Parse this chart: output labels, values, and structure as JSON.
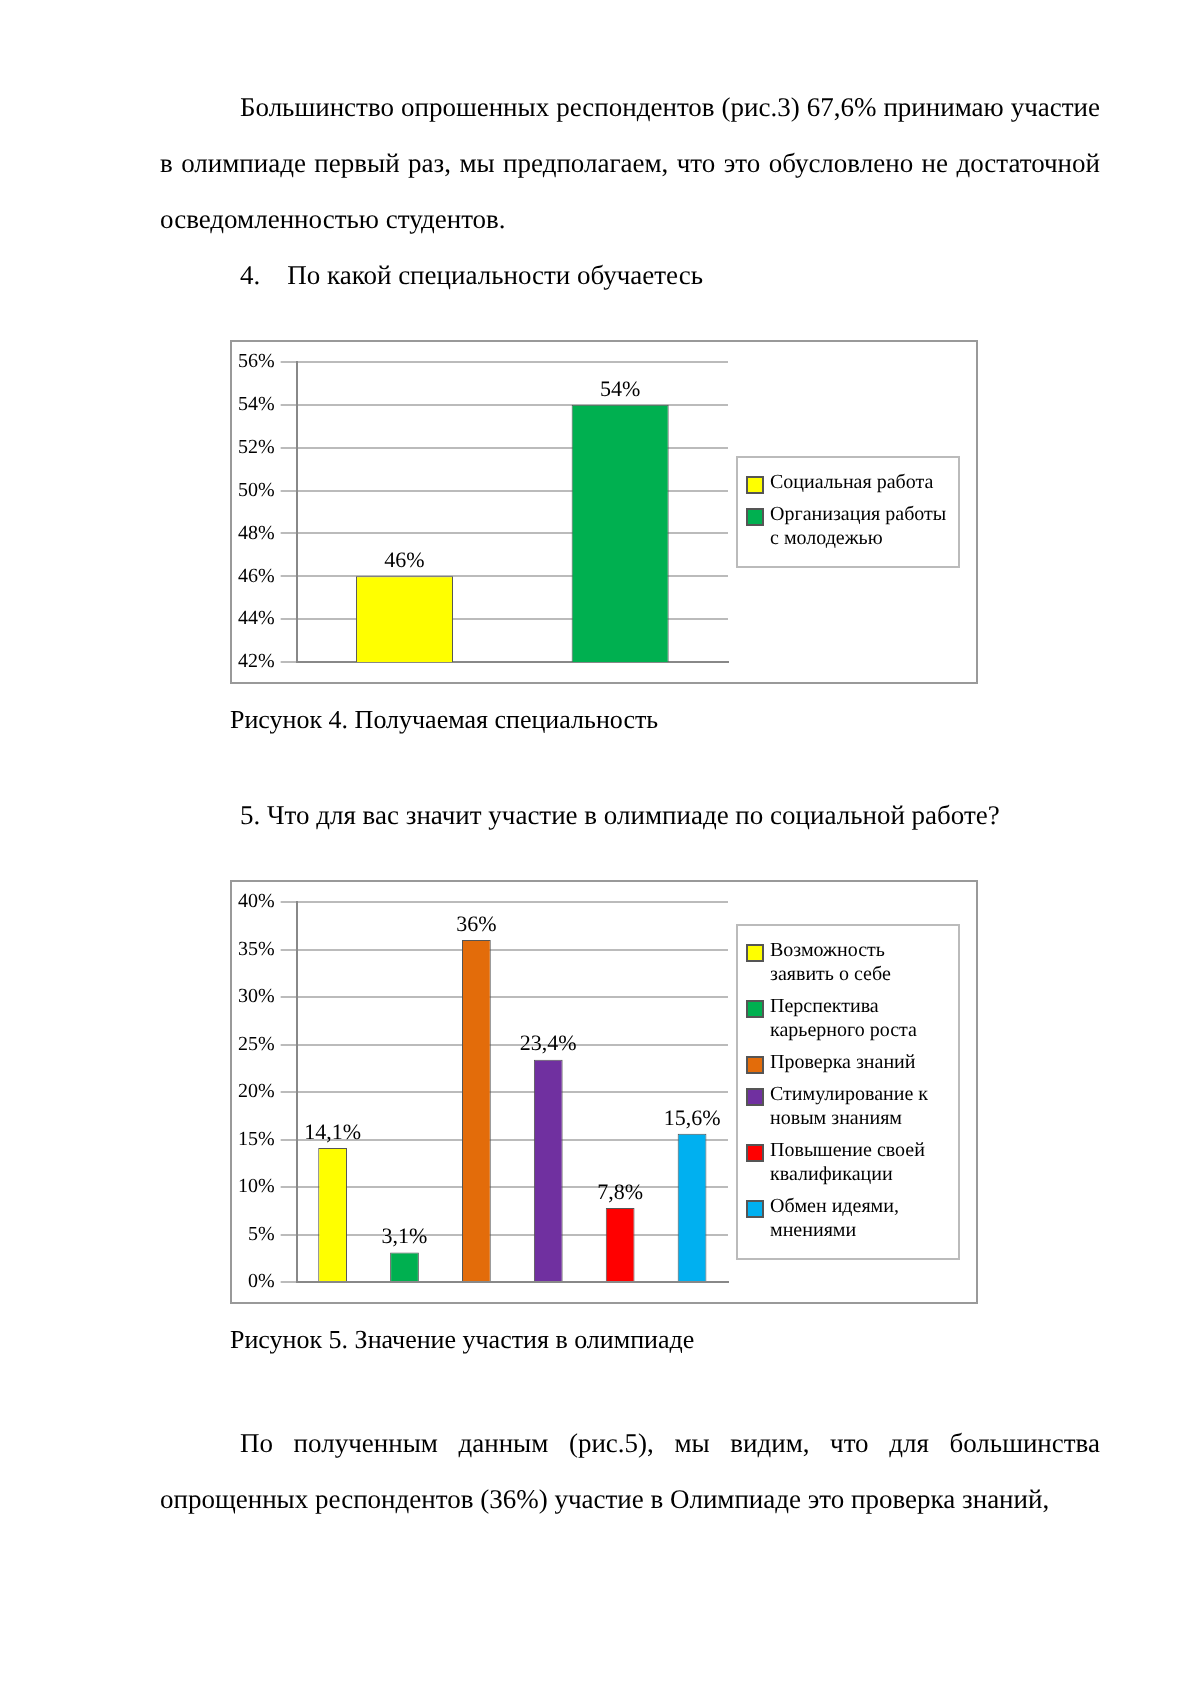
{
  "chart_data": [
    {
      "type": "bar",
      "subtitle": "4. По какой специальности обучаетесь",
      "title": "Рисунок 4. Получаемая специальность",
      "annotations": [
        "Большинство опрошенных респондентов (рис.3) 67,6% принимаю участие в олимпиаде первый раз, мы предполагаем, что это обусловлено не достаточной осведомленностью студентов."
      ],
      "categories": [
        null,
        null
      ],
      "series": [
        {
          "name": "Социальная работа",
          "color": "#ffff00",
          "values": [
            46,
            null
          ],
          "value_labels": [
            "46%",
            null
          ]
        },
        {
          "name": "Организация работы с молодежью",
          "color": "#00b050",
          "values": [
            null,
            54
          ],
          "value_labels": [
            null,
            "54%"
          ]
        }
      ],
      "ylim": [
        42,
        56
      ],
      "yticks": [
        {
          "value": 42,
          "label": "42%"
        },
        {
          "value": 44,
          "label": "44%"
        },
        {
          "value": 46,
          "label": "46%"
        },
        {
          "value": 48,
          "label": "48%"
        },
        {
          "value": 50,
          "label": "50%"
        },
        {
          "value": 52,
          "label": "52%"
        },
        {
          "value": 54,
          "label": "54%"
        },
        {
          "value": 56,
          "label": "56%"
        }
      ],
      "grid": "y",
      "legend": "right"
    },
    {
      "type": "bar",
      "subtitle": "5. Что для вас значит участие в олимпиаде по социальной работе?",
      "title": "Рисунок 5. Значение участия в олимпиаде",
      "annotations": [
        "По полученным данным (рис.5), мы видим, что для большинства опрощенных респондентов (36%) участие в Олимпиаде это проверка знаний,"
      ],
      "categories": [
        null,
        null,
        null,
        null,
        null,
        null
      ],
      "series": [
        {
          "name": "Возможность заявить о себе",
          "color": "#ffff00",
          "values": [
            14.1,
            null,
            null,
            null,
            null,
            null
          ],
          "value_labels": [
            "14,1%",
            null,
            null,
            null,
            null,
            null
          ]
        },
        {
          "name": "Перспектива карьерного роста",
          "color": "#00b050",
          "values": [
            null,
            3.1,
            null,
            null,
            null,
            null
          ],
          "value_labels": [
            null,
            "3,1%",
            null,
            null,
            null,
            null
          ]
        },
        {
          "name": "Проверка знаний",
          "color": "#e36c0a",
          "values": [
            null,
            null,
            36,
            null,
            null,
            null
          ],
          "value_labels": [
            null,
            null,
            "36%",
            null,
            null,
            null
          ]
        },
        {
          "name": "Стимулирование к новым знаниям",
          "color": "#7030a0",
          "values": [
            null,
            null,
            null,
            23.4,
            null,
            null
          ],
          "value_labels": [
            null,
            null,
            null,
            "23,4%",
            null,
            null
          ]
        },
        {
          "name": "Повышение своей квалификации",
          "color": "#ff0000",
          "values": [
            null,
            null,
            null,
            null,
            7.8,
            null
          ],
          "value_labels": [
            null,
            null,
            null,
            null,
            "7,8%",
            null
          ]
        },
        {
          "name": "Обмен идеями, мнениями",
          "color": "#00b0f0",
          "values": [
            null,
            null,
            null,
            null,
            null,
            15.6
          ],
          "value_labels": [
            null,
            null,
            null,
            null,
            null,
            "15,6%"
          ]
        }
      ],
      "ylim": [
        0,
        40
      ],
      "yticks": [
        {
          "value": 0,
          "label": "0%"
        },
        {
          "value": 5,
          "label": "5%"
        },
        {
          "value": 10,
          "label": "10%"
        },
        {
          "value": 15,
          "label": "15%"
        },
        {
          "value": 20,
          "label": "20%"
        },
        {
          "value": 25,
          "label": "25%"
        },
        {
          "value": 30,
          "label": "30%"
        },
        {
          "value": 35,
          "label": "35%"
        },
        {
          "value": 40,
          "label": "40%"
        }
      ],
      "grid": "y",
      "legend": "right"
    }
  ]
}
